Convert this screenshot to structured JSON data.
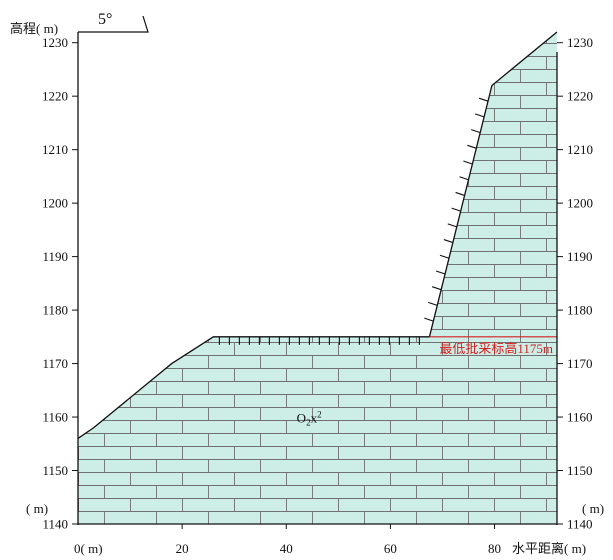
{
  "title_corner": "5°",
  "y_axis": {
    "title": "高程(  m)",
    "unit_label": "(  m)",
    "min": 1140,
    "max": 1232,
    "ticks": [
      1140,
      1150,
      1160,
      1170,
      1180,
      1190,
      1200,
      1210,
      1220,
      1230
    ],
    "tick_labels": [
      "1140",
      "1150",
      "1160",
      "1170",
      "1180",
      "1190",
      "1200",
      "1210",
      "1220",
      "1230"
    ]
  },
  "x_axis": {
    "title": "水平距离(  m)",
    "origin_label": "0(  m)",
    "min": 0,
    "max": 92,
    "ticks": [
      20,
      40,
      60,
      80
    ],
    "tick_labels": [
      "20",
      "40",
      "60",
      "80"
    ]
  },
  "profile": {
    "points": [
      [
        0,
        1156
      ],
      [
        3,
        1158
      ],
      [
        18,
        1170
      ],
      [
        26,
        1175
      ],
      [
        67.5,
        1175
      ],
      [
        79.5,
        1222
      ],
      [
        92,
        1232
      ],
      [
        92,
        1140
      ],
      [
        0,
        1140
      ]
    ],
    "fill_color": "#cdeee6",
    "brick_color": "#707070"
  },
  "bench_level": {
    "elevation": 1175,
    "x_from": 67.5,
    "x_to": 92,
    "label": "最低批采标高1175m",
    "color": "#d42020"
  },
  "rock_label": {
    "main": "O",
    "sub": "2",
    "after": "x",
    "sup": "2",
    "x": 42,
    "y": 1159
  }
}
